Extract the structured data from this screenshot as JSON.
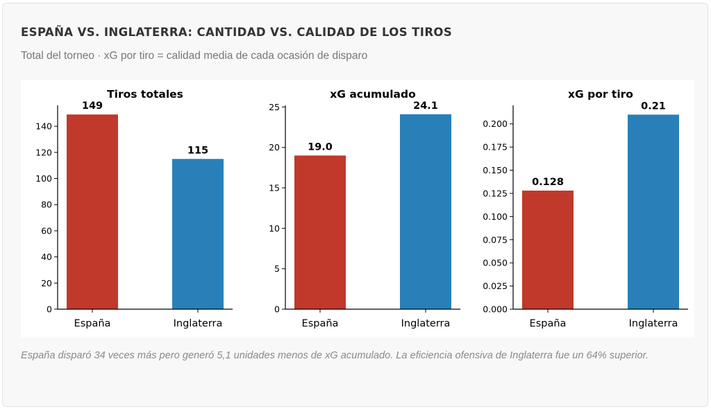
{
  "header": {
    "title": "ESPAÑA VS. INGLATERRA: CANTIDAD VS. CALIDAD DE LOS TIROS",
    "subtitle": "Total del torneo · xG por tiro = calidad media de cada ocasión de disparo"
  },
  "caption": "España disparó 34 veces más pero generó 5,1 unidades menos de xG acumulado. La eficiencia ofensiva de Inglaterra fue un 64% superior.",
  "colors": {
    "espana": "#c0392b",
    "inglaterra": "#2980b9"
  },
  "chart_data": [
    {
      "type": "bar",
      "title": "Tiros totales",
      "categories": [
        "España",
        "Inglaterra"
      ],
      "values": [
        149,
        115
      ],
      "value_labels": [
        "149",
        "115"
      ],
      "ylim": [
        0,
        156
      ],
      "yticks": [
        0,
        20,
        40,
        60,
        80,
        100,
        120,
        140
      ],
      "ytick_labels": [
        "0",
        "20",
        "40",
        "60",
        "80",
        "100",
        "120",
        "140"
      ],
      "grid": false,
      "legend": "none"
    },
    {
      "type": "bar",
      "title": "xG acumulado",
      "categories": [
        "España",
        "Inglaterra"
      ],
      "values": [
        19.0,
        24.1
      ],
      "value_labels": [
        "19.0",
        "24.1"
      ],
      "ylim": [
        0,
        25.2
      ],
      "yticks": [
        0,
        5,
        10,
        15,
        20,
        25
      ],
      "ytick_labels": [
        "0",
        "5",
        "10",
        "15",
        "20",
        "25"
      ],
      "grid": false,
      "legend": "none"
    },
    {
      "type": "bar",
      "title": "xG por tiro",
      "categories": [
        "España",
        "Inglaterra"
      ],
      "values": [
        0.128,
        0.21
      ],
      "value_labels": [
        "0.128",
        "0.21"
      ],
      "ylim": [
        0,
        0.22
      ],
      "yticks": [
        0,
        0.025,
        0.05,
        0.075,
        0.1,
        0.125,
        0.15,
        0.175,
        0.2
      ],
      "ytick_labels": [
        "0.000",
        "0.025",
        "0.050",
        "0.075",
        "0.100",
        "0.125",
        "0.150",
        "0.175",
        "0.200"
      ],
      "grid": false,
      "legend": "none"
    }
  ]
}
